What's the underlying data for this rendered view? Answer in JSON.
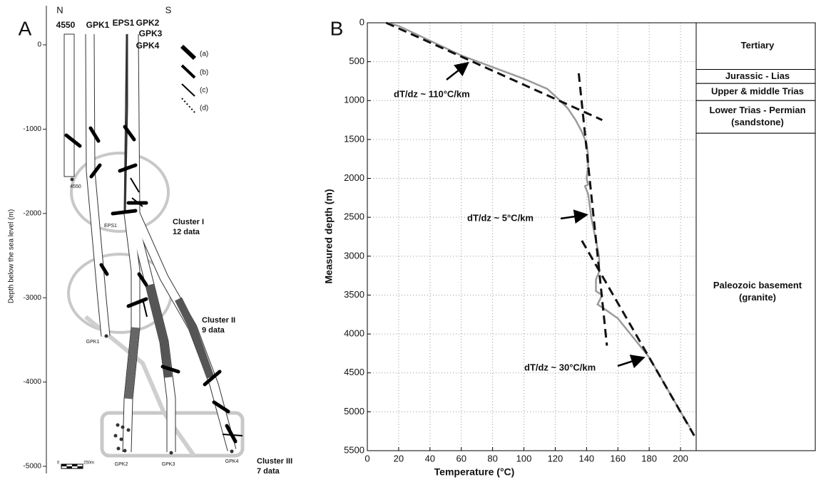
{
  "panel_a": {
    "panel": "A",
    "north": "N",
    "south": "S",
    "depth_axis": {
      "label": "Depth below the sea level (m)",
      "ylim": [
        -5000,
        0
      ],
      "ticks": [
        0,
        -1000,
        -2000,
        -3000,
        -4000,
        -5000
      ]
    },
    "top_labels": [
      "4550",
      "GPK1",
      "EPS1",
      "GPK2",
      "GPK3",
      "GPK4"
    ],
    "legend": [
      "(a)",
      "(b)",
      "(c)",
      "(d)"
    ],
    "clusters": [
      {
        "name": "Cluster I",
        "count": "12 data"
      },
      {
        "name": "Cluster II",
        "count": "9 data"
      },
      {
        "name": "Cluster III",
        "count": "7 data"
      }
    ],
    "bottom_labels": [
      "4550",
      "EPS1",
      "GPK1",
      "GPK2",
      "GPK3",
      "GPK4"
    ],
    "scale": [
      "0",
      "250m"
    ]
  },
  "chart_data": {
    "type": "line",
    "panel": "B",
    "x_label": "Temperature (°C)",
    "y_label": "Measured depth (m)",
    "xlim": [
      0,
      210
    ],
    "xticks": [
      0,
      20,
      40,
      60,
      80,
      100,
      120,
      140,
      160,
      180,
      200
    ],
    "ylim": [
      0,
      5500
    ],
    "y_inverted": true,
    "yticks": [
      0,
      500,
      1000,
      1500,
      2000,
      2500,
      3000,
      3500,
      4000,
      4500,
      5000,
      5500
    ],
    "grid": true,
    "series": [
      {
        "color": "#9a9a9a",
        "dashed": false,
        "x": [
          12,
          20,
          40,
          60,
          80,
          100,
          115,
          122,
          128,
          133,
          137,
          140,
          141,
          141,
          140,
          141,
          139,
          141,
          143,
          146,
          148,
          148,
          146,
          146,
          150,
          147,
          153,
          160,
          170,
          180,
          190,
          200,
          206
        ],
        "values": [
          0,
          40,
          230,
          420,
          570,
          720,
          850,
          980,
          1100,
          1250,
          1400,
          1550,
          1700,
          1850,
          2000,
          2080,
          2100,
          2200,
          2500,
          2800,
          3000,
          3200,
          3300,
          3450,
          3500,
          3620,
          3700,
          3800,
          4050,
          4300,
          4650,
          5000,
          5200
        ]
      },
      {
        "color": "#111111",
        "dashed": true,
        "x": [
          12,
          150
        ],
        "values": [
          0,
          1250
        ]
      },
      {
        "color": "#111111",
        "dashed": true,
        "x": [
          135,
          153
        ],
        "values": [
          650,
          4150
        ]
      },
      {
        "color": "#111111",
        "dashed": true,
        "x": [
          137,
          210
        ],
        "values": [
          2800,
          5350
        ]
      }
    ],
    "annotations": [
      "dT/dz ~ 110°C/km",
      "dT/dz ~ 5°C/km",
      "dT/dz ~ 30°C/km"
    ],
    "strata": [
      {
        "lines": [
          "Tertiary"
        ],
        "top": 0,
        "bottom": 600
      },
      {
        "lines": [
          "Jurassic - Lias"
        ],
        "top": 600,
        "bottom": 780
      },
      {
        "lines": [
          "Upper & middle Trias"
        ],
        "top": 780,
        "bottom": 1000
      },
      {
        "lines": [
          "Lower Trias - Permian",
          "(sandstone)"
        ],
        "top": 1000,
        "bottom": 1420
      },
      {
        "lines": [
          "Paleozoic basement",
          "(granite)"
        ],
        "top": 1420,
        "bottom": 5500
      }
    ]
  }
}
